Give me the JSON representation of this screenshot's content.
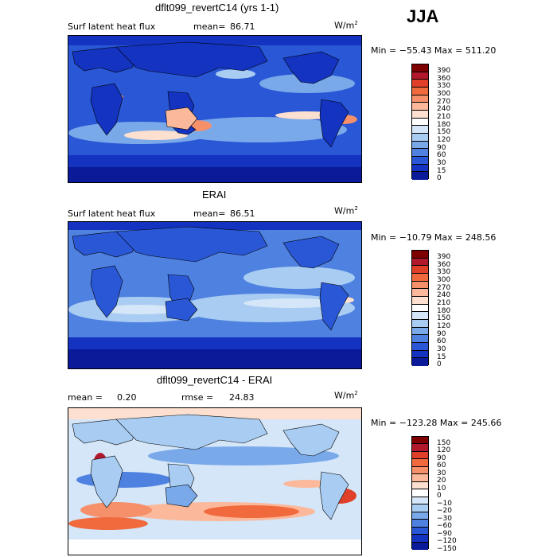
{
  "season": "JJA",
  "units_base": "W/m",
  "units_exp": "2",
  "panels": [
    {
      "title": "dflt099_revertC14 (yrs 1-1)",
      "left_label": "Surf latent heat flux",
      "stat1_label": "mean=",
      "stat1_value": "86.71",
      "stat2_label": "",
      "stat2_value": "",
      "minmax": "Min = −55.43 Max = 511.20",
      "levels": [
        "390",
        "360",
        "330",
        "300",
        "270",
        "240",
        "210",
        "180",
        "150",
        "120",
        "90",
        "60",
        "30",
        "15",
        "0"
      ],
      "colors": [
        "#7f0000",
        "#b2182b",
        "#e0402a",
        "#f06a3e",
        "#f6906a",
        "#fbb89a",
        "#fde0cf",
        "#ffffff",
        "#d4e6f8",
        "#a9cdf2",
        "#7aa9ea",
        "#4f82e0",
        "#2a57d6",
        "#1333c0",
        "#0a1a99"
      ]
    },
    {
      "title": "ERAI",
      "left_label": "Surf latent heat flux",
      "stat1_label": "mean=",
      "stat1_value": "86.51",
      "stat2_label": "",
      "stat2_value": "",
      "minmax": "Min = −10.79 Max = 248.56",
      "levels": [
        "390",
        "360",
        "330",
        "300",
        "270",
        "240",
        "210",
        "180",
        "150",
        "120",
        "90",
        "60",
        "30",
        "15",
        "0"
      ],
      "colors": [
        "#7f0000",
        "#b2182b",
        "#e0402a",
        "#f06a3e",
        "#f6906a",
        "#fbb89a",
        "#fde0cf",
        "#ffffff",
        "#d4e6f8",
        "#a9cdf2",
        "#7aa9ea",
        "#4f82e0",
        "#2a57d6",
        "#1333c0",
        "#0a1a99"
      ]
    },
    {
      "title": "dflt099_revertC14 - ERAI",
      "left_label": "",
      "stat1_label": "mean =",
      "stat1_value": "0.20",
      "stat2_label": "rmse =",
      "stat2_value": "24.83",
      "minmax": "Min = −123.28 Max = 245.66",
      "levels": [
        "150",
        "120",
        "90",
        "60",
        "30",
        "20",
        "10",
        "0",
        "−10",
        "−20",
        "−30",
        "−60",
        "−90",
        "−120",
        "−150"
      ],
      "colors": [
        "#7f0000",
        "#b2182b",
        "#e0402a",
        "#f06a3e",
        "#f6906a",
        "#fbb89a",
        "#fde0cf",
        "#ffffff",
        "#d4e6f8",
        "#a9cdf2",
        "#7aa9ea",
        "#4f82e0",
        "#2a57d6",
        "#1333c0",
        "#0a1a99"
      ]
    }
  ]
}
